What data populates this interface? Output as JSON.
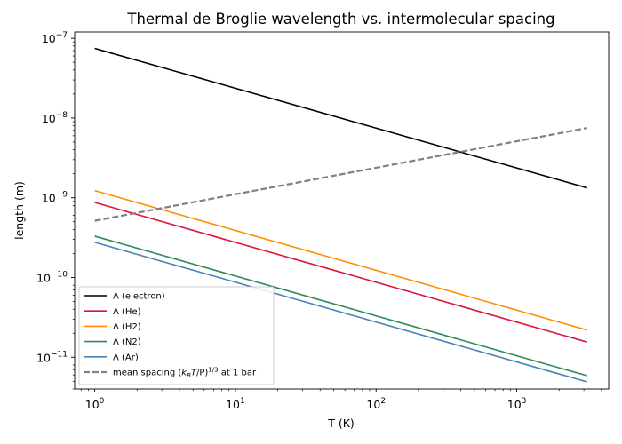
{
  "chart_data": {
    "type": "line",
    "title": "Thermal de Broglie wavelength vs. intermolecular spacing",
    "xlabel": "T (K)",
    "ylabel": "length (m)",
    "xscale": "log",
    "yscale": "log",
    "xlim": [
      0.72,
      4500
    ],
    "ylim": [
      4e-12,
      1.2e-07
    ],
    "grid": false,
    "legend_position": "lower-left",
    "x_ticks": [
      {
        "value": 1,
        "base": "10",
        "exp": "0"
      },
      {
        "value": 10,
        "base": "10",
        "exp": "1"
      },
      {
        "value": 100,
        "base": "10",
        "exp": "2"
      },
      {
        "value": 1000,
        "base": "10",
        "exp": "3"
      }
    ],
    "y_ticks": [
      {
        "value": 1e-11,
        "base": "10",
        "exp": "−11"
      },
      {
        "value": 1e-10,
        "base": "10",
        "exp": "−10"
      },
      {
        "value": 1e-09,
        "base": "10",
        "exp": "−9"
      },
      {
        "value": 1e-08,
        "base": "10",
        "exp": "−8"
      },
      {
        "value": 1e-07,
        "base": "10",
        "exp": "−7"
      }
    ],
    "series": [
      {
        "name": "Λ (electron)",
        "color": "#000000",
        "dash": "solid",
        "x": [
          1,
          3162
        ],
        "values": [
          7.46e-08,
          1.33e-09
        ]
      },
      {
        "name": "Λ (He)",
        "color": "#dc143c",
        "dash": "solid",
        "x": [
          1,
          3162
        ],
        "values": [
          8.72e-10,
          1.55e-11
        ]
      },
      {
        "name": "Λ (H2)",
        "color": "#ff8c00",
        "dash": "solid",
        "x": [
          1,
          3162
        ],
        "values": [
          1.23e-09,
          2.19e-11
        ]
      },
      {
        "name": "Λ (N2)",
        "color": "#2e8b57",
        "dash": "solid",
        "x": [
          1,
          3162
        ],
        "values": [
          3.3e-10,
          5.87e-12
        ]
      },
      {
        "name": "Λ (Ar)",
        "color": "#4682b4",
        "dash": "solid",
        "x": [
          1,
          3162
        ],
        "values": [
          2.76e-10,
          4.91e-12
        ]
      },
      {
        "name": "mean spacing (kBT/P)^1/3 at 1 bar",
        "color": "#808080",
        "dash": "dashed",
        "x": [
          1,
          3162
        ],
        "values": [
          5.14e-10,
          7.5e-09
        ]
      }
    ],
    "legend_label_parts": {
      "prefix": "mean spacing (",
      "k": "k",
      "k_sub": "B",
      "t": "T",
      "slash_p": "/P)",
      "exp": "1/3",
      "suffix": " at 1 bar"
    }
  }
}
